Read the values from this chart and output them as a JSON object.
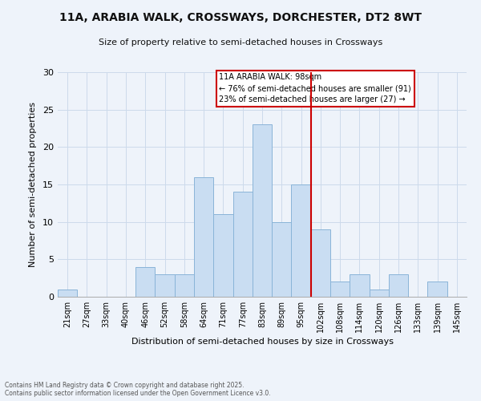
{
  "title": "11A, ARABIA WALK, CROSSWAYS, DORCHESTER, DT2 8WT",
  "subtitle": "Size of property relative to semi-detached houses in Crossways",
  "xlabel": "Distribution of semi-detached houses by size in Crossways",
  "ylabel": "Number of semi-detached properties",
  "footnote1": "Contains HM Land Registry data © Crown copyright and database right 2025.",
  "footnote2": "Contains public sector information licensed under the Open Government Licence v3.0.",
  "bin_labels": [
    "21sqm",
    "27sqm",
    "33sqm",
    "40sqm",
    "46sqm",
    "52sqm",
    "58sqm",
    "64sqm",
    "71sqm",
    "77sqm",
    "83sqm",
    "89sqm",
    "95sqm",
    "102sqm",
    "108sqm",
    "114sqm",
    "120sqm",
    "126sqm",
    "133sqm",
    "139sqm",
    "145sqm"
  ],
  "bar_values": [
    1,
    0,
    0,
    0,
    4,
    3,
    3,
    16,
    11,
    14,
    23,
    10,
    15,
    9,
    2,
    3,
    1,
    3,
    0,
    2,
    0
  ],
  "bar_color": "#c9ddf2",
  "bar_edge_color": "#8ab4d8",
  "grid_color": "#ccdaeb",
  "background_color": "#eef3fa",
  "vline_x": 12.5,
  "vline_color": "#cc0000",
  "ylim": [
    0,
    30
  ],
  "yticks": [
    0,
    5,
    10,
    15,
    20,
    25,
    30
  ],
  "legend_title": "11A ARABIA WALK: 98sqm",
  "legend_line1": "← 76% of semi-detached houses are smaller (91)",
  "legend_line2": "23% of semi-detached houses are larger (27) →",
  "legend_box_color": "#ffffff",
  "legend_box_edge": "#cc0000"
}
